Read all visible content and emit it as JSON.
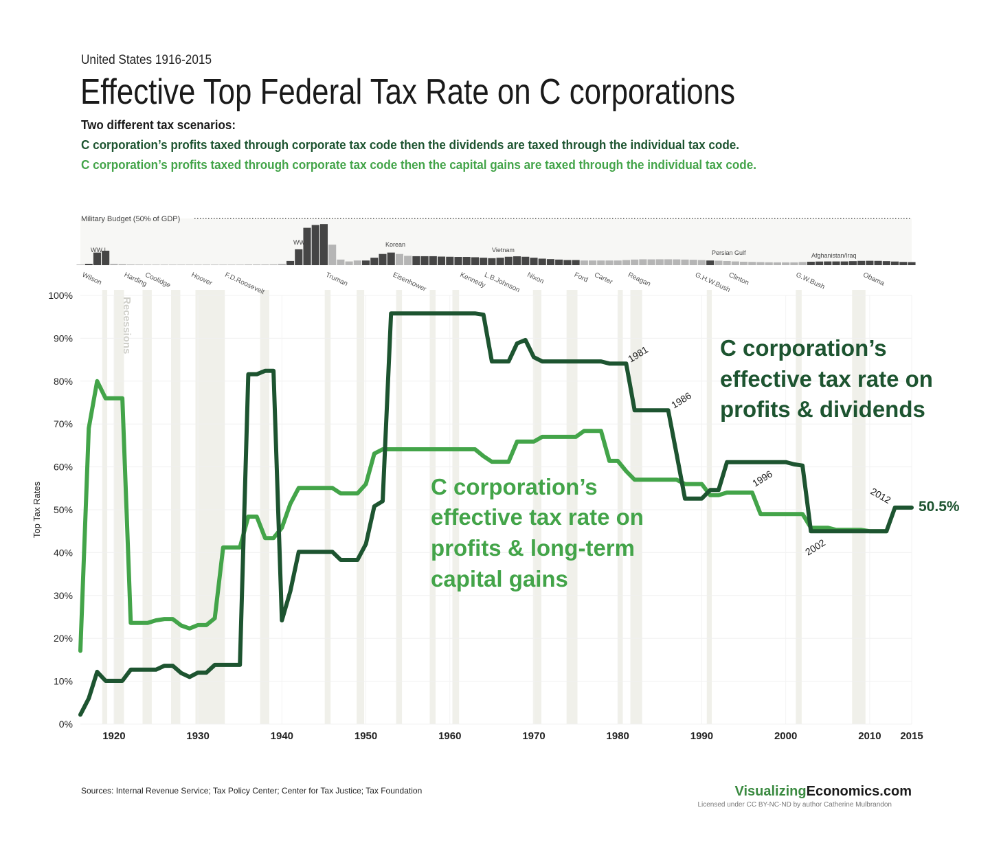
{
  "chart_data": {
    "type": "line",
    "kicker": "United States 1916-2015",
    "title": "Effective Top Federal Tax Rate on C corporations",
    "subtitle": "Two different tax scenarios:",
    "subtitle_lines": [
      "C corporation’s profits taxed through corporate tax code then the dividends are taxed through the individual tax code.",
      "C corporation’s profits taxed through corporate tax code then the capital gains are taxed through the individual tax code."
    ],
    "ylabel": "Top Tax Rates",
    "xlim": [
      1916,
      2015
    ],
    "ylim": [
      0,
      100
    ],
    "xticks": [
      1920,
      1930,
      1940,
      1950,
      1960,
      1970,
      1980,
      1990,
      2000,
      2010,
      2015
    ],
    "yticks": [
      {
        "value": 0,
        "label": "0%"
      },
      {
        "value": 10,
        "label": "10%"
      },
      {
        "value": 20,
        "label": "20%"
      },
      {
        "value": 30,
        "label": "30%"
      },
      {
        "value": 40,
        "label": "40%"
      },
      {
        "value": 50,
        "label": "50%"
      },
      {
        "value": 60,
        "label": "60%"
      },
      {
        "value": 70,
        "label": "70%"
      },
      {
        "value": 80,
        "label": "80%"
      },
      {
        "value": 90,
        "label": "90%"
      },
      {
        "value": 100,
        "label": "100%"
      }
    ],
    "grid": true,
    "x": [
      1916,
      1917,
      1918,
      1919,
      1920,
      1921,
      1922,
      1923,
      1924,
      1925,
      1926,
      1927,
      1928,
      1929,
      1930,
      1931,
      1932,
      1933,
      1934,
      1935,
      1936,
      1937,
      1938,
      1939,
      1940,
      1941,
      1942,
      1943,
      1944,
      1945,
      1946,
      1947,
      1948,
      1949,
      1950,
      1951,
      1952,
      1953,
      1954,
      1955,
      1956,
      1957,
      1958,
      1959,
      1960,
      1961,
      1962,
      1963,
      1964,
      1965,
      1966,
      1967,
      1968,
      1969,
      1970,
      1971,
      1972,
      1973,
      1974,
      1975,
      1976,
      1977,
      1978,
      1979,
      1980,
      1981,
      1982,
      1983,
      1984,
      1985,
      1986,
      1987,
      1988,
      1989,
      1990,
      1991,
      1992,
      1993,
      1994,
      1995,
      1996,
      1997,
      1998,
      1999,
      2000,
      2001,
      2002,
      2003,
      2004,
      2005,
      2006,
      2007,
      2008,
      2009,
      2010,
      2011,
      2012,
      2013,
      2014,
      2015
    ],
    "series": [
      {
        "name": "C corporation’s effective tax rate on profits & dividends",
        "label": [
          "C corporation’s",
          "effective tax rate on",
          "profits & dividends"
        ],
        "color": "#1d5430",
        "values": [
          2.2,
          6,
          12.2,
          10.1,
          10.1,
          10.1,
          12.7,
          12.7,
          12.7,
          12.7,
          13.6,
          13.6,
          11.9,
          11,
          12,
          12,
          13.8,
          13.8,
          13.8,
          13.8,
          81.6,
          81.6,
          82.4,
          82.4,
          24.2,
          31,
          40.2,
          40.2,
          40.2,
          40.2,
          40.2,
          38.3,
          38.3,
          38.3,
          42,
          50.8,
          52,
          95.8,
          95.8,
          95.8,
          95.8,
          95.8,
          95.8,
          95.8,
          95.8,
          95.8,
          95.8,
          95.8,
          95.5,
          84.6,
          84.6,
          84.6,
          88.8,
          89.6,
          85.6,
          84.6,
          84.6,
          84.6,
          84.6,
          84.6,
          84.6,
          84.6,
          84.6,
          84.1,
          84.1,
          84.1,
          73.2,
          73.2,
          73.2,
          73.2,
          73.2,
          63,
          52.6,
          52.6,
          52.6,
          54.6,
          54.6,
          61.1,
          61.1,
          61.1,
          61.1,
          61.1,
          61.1,
          61.1,
          61.1,
          60.6,
          60.3,
          45,
          45,
          45,
          45,
          45,
          45,
          45,
          45,
          45,
          45,
          50.5,
          50.5,
          50.5
        ],
        "end_label": "50.5%"
      },
      {
        "name": "C corporation’s effective tax rate on profits & long-term capital gains",
        "label": [
          "C corporation’s",
          "effective tax rate on",
          "profits & long-term",
          "capital gains"
        ],
        "color": "#43a449",
        "values": [
          17.1,
          69,
          80,
          76,
          76,
          76,
          23.6,
          23.6,
          23.6,
          24.2,
          24.5,
          24.5,
          23,
          22.3,
          23.1,
          23.1,
          24.7,
          41.2,
          41.2,
          41.2,
          48.4,
          48.4,
          43.4,
          43.4,
          45.8,
          51.4,
          55.1,
          55.1,
          55.1,
          55.1,
          55.1,
          53.8,
          53.8,
          53.8,
          56,
          63.1,
          64.1,
          64.1,
          64.1,
          64.1,
          64.1,
          64.1,
          64.1,
          64.1,
          64.1,
          64.1,
          64.1,
          64.1,
          62.5,
          61.2,
          61.2,
          61.2,
          65.9,
          65.9,
          65.9,
          67,
          67,
          67,
          67,
          67,
          68.4,
          68.4,
          68.4,
          61.4,
          61.4,
          59,
          57,
          57,
          57,
          57,
          57,
          57,
          56,
          56,
          56,
          53.4,
          53.4,
          54,
          54,
          54,
          54,
          49,
          49,
          49,
          49,
          49,
          49,
          45.8,
          45.8,
          45.8,
          45.3,
          45.3,
          45.3,
          45.3,
          45,
          45,
          45,
          null,
          null,
          null
        ]
      }
    ],
    "year_annotations": [
      "1981",
      "1986",
      "1996",
      "2002",
      "2012"
    ],
    "recessions_label": "Recessions",
    "recessions": [
      [
        1918.6,
        1919.2
      ],
      [
        1920,
        1921.2
      ],
      [
        1923.4,
        1924.5
      ],
      [
        1926.8,
        1927.9
      ],
      [
        1929.7,
        1933.2
      ],
      [
        1937.4,
        1938.5
      ],
      [
        1945.1,
        1945.8
      ],
      [
        1948.9,
        1949.8
      ],
      [
        1953.6,
        1954.3
      ],
      [
        1957.6,
        1958.3
      ],
      [
        1960.3,
        1961.1
      ],
      [
        1969.9,
        1970.9
      ],
      [
        1973.9,
        1975.2
      ],
      [
        1980,
        1980.6
      ],
      [
        1981.5,
        1982.9
      ],
      [
        1990.6,
        1991.2
      ],
      [
        2001.2,
        2001.9
      ],
      [
        2007.9,
        2009.5
      ]
    ],
    "presidents": [
      {
        "name": "Wilson",
        "start": 1916
      },
      {
        "name": "Harding",
        "start": 1921
      },
      {
        "name": "Coolidge",
        "start": 1923.5
      },
      {
        "name": "Hoover",
        "start": 1929
      },
      {
        "name": "F.D.Roosevelt",
        "start": 1933
      },
      {
        "name": "Truman",
        "start": 1945
      },
      {
        "name": "Eisenhower",
        "start": 1953
      },
      {
        "name": "Kennedy",
        "start": 1961
      },
      {
        "name": "L.B.Johnson",
        "start": 1963.9
      },
      {
        "name": "Nixon",
        "start": 1969
      },
      {
        "name": "Ford",
        "start": 1974.6
      },
      {
        "name": "Carter",
        "start": 1977
      },
      {
        "name": "Reagan",
        "start": 1981
      },
      {
        "name": "G.H.W.Bush",
        "start": 1989
      },
      {
        "name": "Clinton",
        "start": 1993
      },
      {
        "name": "G.W.Bush",
        "start": 2001
      },
      {
        "name": "Obama",
        "start": 2009
      }
    ],
    "military": {
      "label": "Military Budget (50% of GDP)",
      "ylim": [
        0,
        50
      ],
      "wars": [
        "WW I",
        "WW II",
        "Korean",
        "Vietnam",
        "Persian Gulf",
        "Afghanistan/Iraq"
      ],
      "values": [
        0.8,
        1.5,
        13.5,
        15.5,
        1.5,
        1.2,
        0.8,
        0.7,
        0.6,
        0.6,
        0.6,
        0.6,
        0.6,
        0.6,
        0.6,
        0.6,
        0.6,
        0.6,
        0.6,
        0.6,
        0.8,
        0.8,
        0.8,
        0.9,
        1.5,
        4.5,
        17,
        40,
        43,
        44,
        22,
        6,
        4,
        5,
        5,
        8,
        12,
        13.5,
        12,
        10,
        9.6,
        9.6,
        9.6,
        9.2,
        9,
        8.8,
        8.8,
        8.5,
        8,
        7.5,
        8,
        9,
        9.5,
        9,
        8,
        7,
        6.5,
        6,
        5.5,
        5.5,
        5,
        5,
        5,
        5,
        5,
        5.5,
        6,
        6.3,
        6.2,
        6.3,
        6.3,
        6.2,
        6,
        5.8,
        5.5,
        5,
        4.8,
        4.4,
        4,
        3.7,
        3.5,
        3.3,
        3.1,
        3,
        3,
        3,
        3.4,
        3.7,
        3.9,
        4,
        4,
        4,
        4.3,
        4.6,
        4.7,
        4.6,
        4.3,
        3.9,
        3.5,
        3.3
      ],
      "colors": [
        "#b5b5b5",
        "#454545",
        "#454545",
        "#454545",
        "#b5b5b5",
        "#b5b5b5",
        "#b5b5b5",
        "#b5b5b5",
        "#b5b5b5",
        "#b5b5b5",
        "#b5b5b5",
        "#b5b5b5",
        "#b5b5b5",
        "#b5b5b5",
        "#b5b5b5",
        "#b5b5b5",
        "#b5b5b5",
        "#b5b5b5",
        "#b5b5b5",
        "#b5b5b5",
        "#b5b5b5",
        "#b5b5b5",
        "#b5b5b5",
        "#b5b5b5",
        "#b5b5b5",
        "#454545",
        "#454545",
        "#454545",
        "#454545",
        "#454545",
        "#b5b5b5",
        "#b5b5b5",
        "#b5b5b5",
        "#b5b5b5",
        "#454545",
        "#454545",
        "#454545",
        "#454545",
        "#b5b5b5",
        "#b5b5b5",
        "#454545",
        "#454545",
        "#454545",
        "#454545",
        "#454545",
        "#454545",
        "#454545",
        "#454545",
        "#454545",
        "#454545",
        "#454545",
        "#454545",
        "#454545",
        "#454545",
        "#454545",
        "#454545",
        "#454545",
        "#454545",
        "#454545",
        "#454545",
        "#b5b5b5",
        "#b5b5b5",
        "#b5b5b5",
        "#b5b5b5",
        "#b5b5b5",
        "#b5b5b5",
        "#b5b5b5",
        "#b5b5b5",
        "#b5b5b5",
        "#b5b5b5",
        "#b5b5b5",
        "#b5b5b5",
        "#b5b5b5",
        "#b5b5b5",
        "#b5b5b5",
        "#454545",
        "#b5b5b5",
        "#b5b5b5",
        "#b5b5b5",
        "#b5b5b5",
        "#b5b5b5",
        "#b5b5b5",
        "#b5b5b5",
        "#b5b5b5",
        "#b5b5b5",
        "#b5b5b5",
        "#b5b5b5",
        "#454545",
        "#454545",
        "#454545",
        "#454545",
        "#454545",
        "#454545",
        "#454545",
        "#454545",
        "#454545",
        "#454545",
        "#454545",
        "#454545",
        "#454545"
      ]
    },
    "source": "Sources: Internal Revenue Service; Tax Policy Center; Center for Tax Justice; Tax Foundation",
    "brand": [
      "Visualizing",
      "Economics.com"
    ],
    "license": "Licensed under CC BY-NC-ND by author Catherine Mulbrandon"
  }
}
